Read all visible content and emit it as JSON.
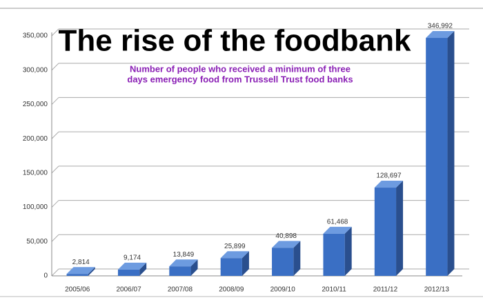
{
  "chart_data": {
    "type": "bar3d",
    "title": "The rise of the foodbank",
    "subtitle": [
      "Number of people who received a minimum of three",
      "days emergency food from Trussell Trust food banks"
    ],
    "categories": [
      "2005/06",
      "2006/07",
      "2007/08",
      "2008/09",
      "2009/10",
      "2010/11",
      "2011/12",
      "2012/13"
    ],
    "values": [
      2814,
      9174,
      13849,
      25899,
      40898,
      61468,
      128697,
      346992
    ],
    "value_labels": [
      "2,814",
      "9,174",
      "13,849",
      "25,899",
      "40,898",
      "61,468",
      "128,697",
      "346,992"
    ],
    "color": "#3a6fc4",
    "ylim": [
      0,
      350000
    ],
    "yticks": [
      0,
      {
        "value": 50000,
        "label": "50,000"
      },
      {
        "value": 100000,
        "label": "100,000"
      },
      {
        "value": 150000,
        "label": "150,000"
      },
      {
        "value": 200000,
        "label": "200,000"
      },
      {
        "value": 250000,
        "label": "250,000"
      },
      {
        "value": 300000,
        "label": "300,000"
      },
      {
        "value": 350000,
        "label": "350,000"
      }
    ],
    "grid": true
  }
}
